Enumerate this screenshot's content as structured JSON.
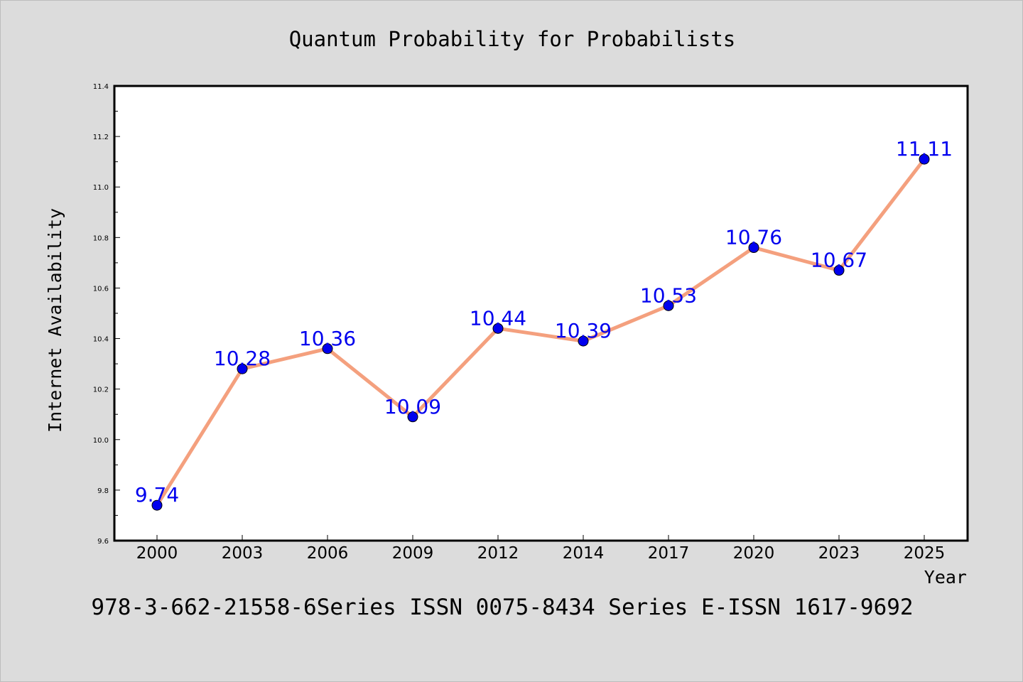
{
  "chart_data": {
    "type": "line",
    "title": "Quantum Probability for Probabilists",
    "xlabel": "Year",
    "ylabel": "Internet Availability",
    "categories": [
      "2000",
      "2003",
      "2006",
      "2009",
      "2012",
      "2014",
      "2017",
      "2020",
      "2023",
      "2025"
    ],
    "series": [
      {
        "values": [
          9.74,
          10.28,
          10.36,
          10.09,
          10.44,
          10.39,
          10.53,
          10.76,
          10.67,
          11.11
        ],
        "data_labels": [
          "9.74",
          "10.28",
          "10.36",
          "10.09",
          "10.44",
          "10.39",
          "10.53",
          "10.76",
          "10.67",
          "11.11"
        ],
        "line_color": "#f4a07e",
        "marker_color": "#0000ee",
        "label_color": "#0000ee"
      }
    ],
    "ylim": [
      9.6,
      11.4
    ],
    "yticks": [
      "9.6",
      "9.8",
      "10.0",
      "10.2",
      "10.4",
      "10.6",
      "10.8",
      "11.0",
      "11.2",
      "11.4"
    ],
    "grid": false,
    "legend": "none",
    "background": "#dcdcdc",
    "plot_background": "#ffffff"
  },
  "footer": {
    "text": "978-3-662-21558-6Series ISSN 0075-8434 Series E-ISSN 1617-9692"
  }
}
